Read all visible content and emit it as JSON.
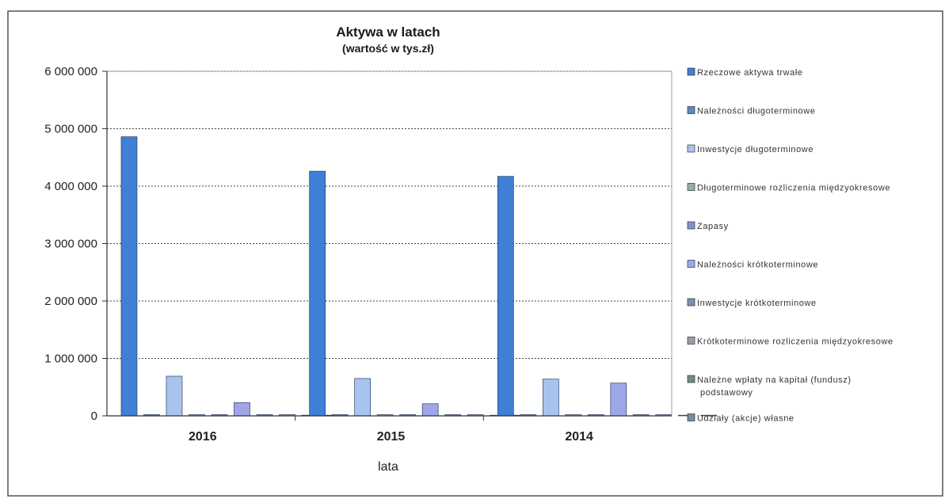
{
  "chart_data": {
    "type": "bar",
    "title": "Aktywa w latach",
    "subtitle": "(wartość w tys.zł)",
    "xlabel": "lata",
    "ylabel": "",
    "ylim": [
      0,
      6000000
    ],
    "yticks": [
      0,
      1000000,
      2000000,
      3000000,
      4000000,
      5000000,
      6000000
    ],
    "ytick_labels": [
      "0",
      "1 000 000",
      "2 000 000",
      "3 000 000",
      "4 000 000",
      "5 000 000",
      "6 000 000"
    ],
    "grid": true,
    "legend_position": "right",
    "categories": [
      "2016",
      "2015",
      "2014"
    ],
    "series": [
      {
        "name": "Rzeczowe aktywa trwałe",
        "color": "#3f7fd6",
        "values": [
          4860000,
          4260000,
          4170000
        ]
      },
      {
        "name": "Należności długoterminowe",
        "color": "#5e87c4",
        "values": [
          10000,
          10000,
          10000
        ]
      },
      {
        "name": "Inwestycje długoterminowe",
        "color": "#a8c4ee",
        "values": [
          690000,
          650000,
          640000
        ]
      },
      {
        "name": "Długoterminowe rozliczenia międzyokresowe",
        "color": "#8fb0a4",
        "values": [
          5000,
          5000,
          5000
        ]
      },
      {
        "name": "Zapasy",
        "color": "#7d96c4",
        "values": [
          8000,
          8000,
          8000
        ]
      },
      {
        "name": "Należności krótkoterminowe",
        "color": "#9fa6e6",
        "values": [
          230000,
          210000,
          570000
        ]
      },
      {
        "name": "Inwestycje krótkoterminowe",
        "color": "#7f8fb0",
        "values": [
          10000,
          10000,
          10000
        ]
      },
      {
        "name": "Krótkoterminowe rozliczenia międzyokresowe",
        "color": "#9a9aa8",
        "values": [
          5000,
          5000,
          5000
        ]
      },
      {
        "name": "Należne wpłaty na kapitał (fundusz) podstawowy",
        "color": "#6d8e88",
        "values": [
          0,
          0,
          0
        ]
      },
      {
        "name": "Udziały (akcje) własne",
        "color": "#7a8a9c",
        "values": [
          0,
          0,
          0
        ]
      }
    ],
    "legend_lines": [
      [
        "Rzeczowe aktywa trwałe"
      ],
      [
        "Należności długoterminowe"
      ],
      [
        "Inwestycje długoterminowe"
      ],
      [
        "Długoterminowe rozliczenia międzyokresowe"
      ],
      [
        "Zapasy"
      ],
      [
        "Należności krótkoterminowe"
      ],
      [
        "Inwestycje krótkoterminowe"
      ],
      [
        "Krótkoterminowe rozliczenia międzyokresowe"
      ],
      [
        "Należne wpłaty na kapitał (fundusz)",
        "podstawowy"
      ],
      [
        "Udziały (akcje) własne"
      ]
    ]
  }
}
